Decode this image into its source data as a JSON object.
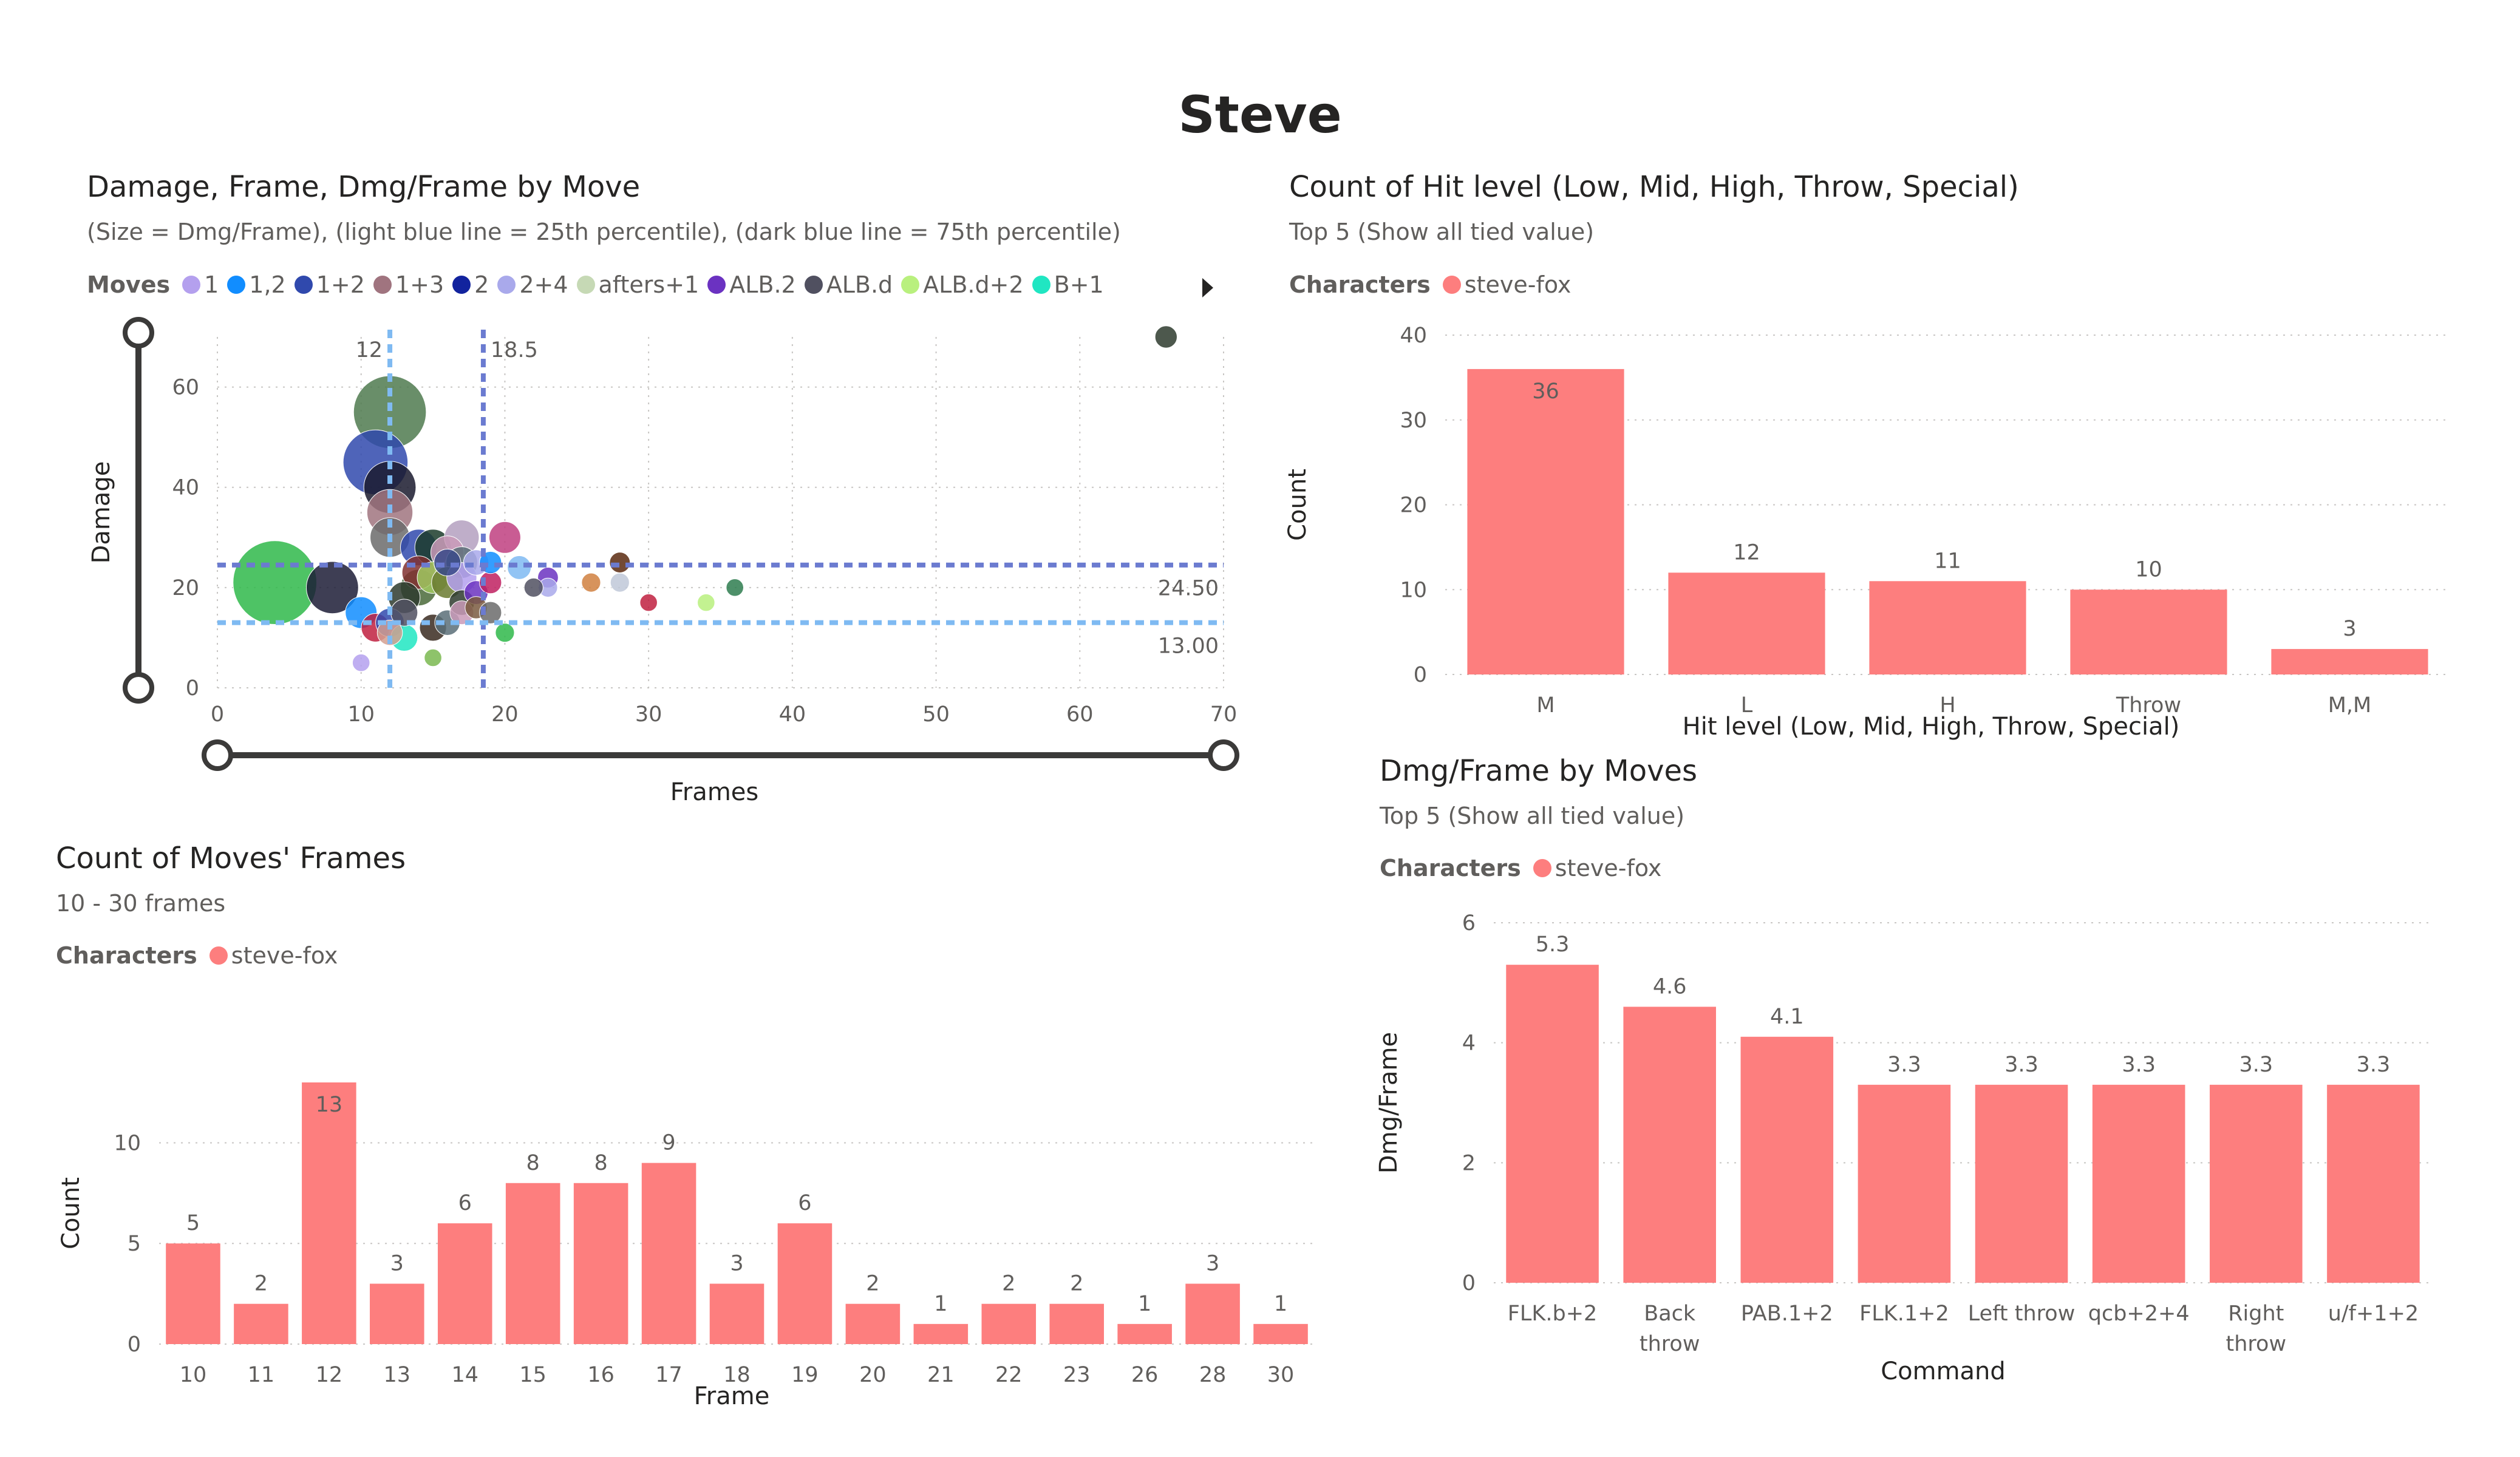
{
  "page_title": "Steve",
  "colors": {
    "bar": "#fd7e7e",
    "grid": "#c8c6c4",
    "p25": "#7fbaf2",
    "p75": "#6b7bd0"
  },
  "scatter": {
    "title": "Damage, Frame, Dmg/Frame by Move",
    "subtitle": "(Size = Dmg/Frame), (light blue line = 25th percentile), (dark blue line = 75th percentile)",
    "legend_label": "Moves",
    "legend_items": [
      {
        "name": "1",
        "color": "#b4a0ee"
      },
      {
        "name": "1,2",
        "color": "#118dff"
      },
      {
        "name": "1+2",
        "color": "#3049ad"
      },
      {
        "name": "1+3",
        "color": "#a0747f"
      },
      {
        "name": "2",
        "color": "#12239e"
      },
      {
        "name": "2+4",
        "color": "#a9a9eb"
      },
      {
        "name": "afters+1",
        "color": "#c6d9b5"
      },
      {
        "name": "ALB.2",
        "color": "#6b32c1"
      },
      {
        "name": "ALB.d",
        "color": "#505060"
      },
      {
        "name": "ALB.d+2",
        "color": "#b9f07e"
      },
      {
        "name": "B+1",
        "color": "#20e6c2"
      }
    ],
    "legend_more_icon": "chevron-right-icon",
    "xlabel": "Frames",
    "ylabel": "Damage"
  },
  "hit_level": {
    "title": "Count of Hit level (Low, Mid, High, Throw, Special)",
    "subtitle": "Top 5 (Show all tied value)",
    "legend_label": "Characters",
    "legend_series": "steve-fox"
  },
  "frames": {
    "title": "Count of Moves' Frames",
    "subtitle": "10 - 30 frames",
    "legend_label": "Characters",
    "legend_series": "steve-fox"
  },
  "dmgframe": {
    "title": "Dmg/Frame by Moves",
    "subtitle": "Top 5 (Show all tied value)",
    "legend_label": "Characters",
    "legend_series": "steve-fox"
  },
  "chart_data": [
    {
      "id": "scatter",
      "type": "scatter",
      "title": "Damage, Frame, Dmg/Frame by Move",
      "xlabel": "Frames",
      "ylabel": "Damage",
      "xlim": [
        0,
        70
      ],
      "ylim": [
        0,
        70
      ],
      "xticks": [
        0,
        10,
        20,
        30,
        40,
        50,
        60,
        70
      ],
      "yticks": [
        0,
        20,
        40,
        60
      ],
      "grid": true,
      "reference_lines": [
        {
          "axis": "x",
          "value": 12,
          "label": "12",
          "color": "#7fbaf2"
        },
        {
          "axis": "x",
          "value": 18.5,
          "label": "18.5",
          "color": "#6b7bd0"
        },
        {
          "axis": "y",
          "value": 24.5,
          "label": "24.50",
          "color": "#6b7bd0"
        },
        {
          "axis": "y",
          "value": 13,
          "label": "13.00",
          "color": "#7fbaf2"
        }
      ],
      "points": [
        {
          "x": 12,
          "y": 55,
          "r": 4.6,
          "c": "#4f7a4f"
        },
        {
          "x": 11,
          "y": 45,
          "r": 4.1,
          "c": "#3049ad"
        },
        {
          "x": 12,
          "y": 40,
          "r": 3.3,
          "c": "#1a1a2e"
        },
        {
          "x": 12,
          "y": 35,
          "r": 2.9,
          "c": "#a0747f"
        },
        {
          "x": 12,
          "y": 30,
          "r": 2.5,
          "c": "#6b6b6b"
        },
        {
          "x": 14,
          "y": 28,
          "r": 2.3,
          "c": "#3049ad"
        },
        {
          "x": 15,
          "y": 28,
          "r": 2.3,
          "c": "#1b3b2a"
        },
        {
          "x": 16,
          "y": 27,
          "r": 2.1,
          "c": "#c99ab8"
        },
        {
          "x": 17,
          "y": 30,
          "r": 2.2,
          "c": "#b4a0c0"
        },
        {
          "x": 17,
          "y": 25,
          "r": 2.0,
          "c": "#5a6e78"
        },
        {
          "x": 20,
          "y": 30,
          "r": 2.0,
          "c": "#c04080"
        },
        {
          "x": 21,
          "y": 24,
          "r": 1.5,
          "c": "#7fbaf2"
        },
        {
          "x": 23,
          "y": 22,
          "r": 1.3,
          "c": "#6b32c1"
        },
        {
          "x": 23,
          "y": 20,
          "r": 1.2,
          "c": "#a9a9eb"
        },
        {
          "x": 22,
          "y": 20,
          "r": 1.2,
          "c": "#505060"
        },
        {
          "x": 26,
          "y": 21,
          "r": 1.2,
          "c": "#d08040"
        },
        {
          "x": 28,
          "y": 25,
          "r": 1.3,
          "c": "#5a2a10"
        },
        {
          "x": 28,
          "y": 21,
          "r": 1.2,
          "c": "#c0c8d8"
        },
        {
          "x": 30,
          "y": 17,
          "r": 1.1,
          "c": "#c02040"
        },
        {
          "x": 34,
          "y": 17,
          "r": 1.1,
          "c": "#b9f07e"
        },
        {
          "x": 36,
          "y": 20,
          "r": 1.1,
          "c": "#2e7d4f"
        },
        {
          "x": 66,
          "y": 70,
          "r": 1.4,
          "c": "#2e3b2e"
        },
        {
          "x": 4,
          "y": 21,
          "r": 5.3,
          "c": "#2fb84a"
        },
        {
          "x": 8,
          "y": 20,
          "r": 3.3,
          "c": "#1c1c36"
        },
        {
          "x": 10,
          "y": 15,
          "r": 2.0,
          "c": "#118dff"
        },
        {
          "x": 11,
          "y": 12,
          "r": 1.8,
          "c": "#c02040"
        },
        {
          "x": 12,
          "y": 13,
          "r": 1.8,
          "c": "#3049ad"
        },
        {
          "x": 12,
          "y": 11,
          "r": 1.6,
          "c": "#d4a090"
        },
        {
          "x": 13,
          "y": 10,
          "r": 1.7,
          "c": "#20e6c2"
        },
        {
          "x": 13,
          "y": 15,
          "r": 1.7,
          "c": "#505060"
        },
        {
          "x": 13,
          "y": 18,
          "r": 2.0,
          "c": "#2e3b2e"
        },
        {
          "x": 14,
          "y": 20,
          "r": 2.3,
          "c": "#4a6a3a"
        },
        {
          "x": 14,
          "y": 23,
          "r": 2.1,
          "c": "#803030"
        },
        {
          "x": 15,
          "y": 22,
          "r": 2.0,
          "c": "#a0c860"
        },
        {
          "x": 15,
          "y": 12,
          "r": 1.7,
          "c": "#3a2a20"
        },
        {
          "x": 16,
          "y": 13,
          "r": 1.6,
          "c": "#5a6e78"
        },
        {
          "x": 16,
          "y": 21,
          "r": 2.0,
          "c": "#6a7a30"
        },
        {
          "x": 17,
          "y": 22,
          "r": 1.9,
          "c": "#b4a0ee"
        },
        {
          "x": 17,
          "y": 17,
          "r": 1.6,
          "c": "#2e3b2e"
        },
        {
          "x": 17,
          "y": 15,
          "r": 1.5,
          "c": "#c99ab8"
        },
        {
          "x": 18,
          "y": 19,
          "r": 1.5,
          "c": "#6b32c1"
        },
        {
          "x": 18,
          "y": 16,
          "r": 1.4,
          "c": "#7a5a40"
        },
        {
          "x": 19,
          "y": 21,
          "r": 1.4,
          "c": "#c02060"
        },
        {
          "x": 19,
          "y": 15,
          "r": 1.4,
          "c": "#6b6b6b"
        },
        {
          "x": 20,
          "y": 11,
          "r": 1.2,
          "c": "#2fb84a"
        },
        {
          "x": 15,
          "y": 6,
          "r": 1.1,
          "c": "#7ab850"
        },
        {
          "x": 10,
          "y": 5,
          "r": 1.1,
          "c": "#b4a0ee"
        },
        {
          "x": 18,
          "y": 25,
          "r": 1.6,
          "c": "#a9a9eb"
        },
        {
          "x": 16,
          "y": 25,
          "r": 1.7,
          "c": "#3a4a8a"
        },
        {
          "x": 19,
          "y": 25,
          "r": 1.4,
          "c": "#118dff"
        }
      ]
    },
    {
      "id": "hit_level",
      "type": "bar",
      "title": "Count of Hit level (Low, Mid, High, Throw, Special)",
      "categories": [
        "M",
        "L",
        "H",
        "Throw",
        "M,M"
      ],
      "values": [
        36,
        12,
        11,
        10,
        3
      ],
      "xlabel": "Hit level (Low, Mid, High, Throw, Special)",
      "ylabel": "Count",
      "ylim": [
        0,
        40
      ],
      "yticks": [
        0,
        10,
        20,
        30,
        40
      ],
      "series": [
        {
          "name": "steve-fox",
          "values": [
            36,
            12,
            11,
            10,
            3
          ]
        }
      ]
    },
    {
      "id": "frames",
      "type": "bar",
      "title": "Count of Moves' Frames",
      "categories": [
        "10",
        "11",
        "12",
        "13",
        "14",
        "15",
        "16",
        "17",
        "18",
        "19",
        "20",
        "21",
        "22",
        "23",
        "26",
        "28",
        "30"
      ],
      "values": [
        5,
        2,
        13,
        3,
        6,
        8,
        8,
        9,
        3,
        6,
        2,
        1,
        2,
        2,
        1,
        3,
        1
      ],
      "xlabel": "Frame",
      "ylabel": "Count",
      "ylim": [
        0,
        13
      ],
      "yticks": [
        0,
        5,
        10
      ],
      "series": [
        {
          "name": "steve-fox",
          "values": [
            5,
            2,
            13,
            3,
            6,
            8,
            8,
            9,
            3,
            6,
            2,
            1,
            2,
            2,
            1,
            3,
            1
          ]
        }
      ]
    },
    {
      "id": "dmgframe",
      "type": "bar",
      "title": "Dmg/Frame by Moves",
      "categories": [
        "FLK.b+2",
        "Back throw",
        "PAB.1+2",
        "FLK.1+2",
        "Left throw",
        "qcb+2+4",
        "Right throw",
        "u/f+1+2"
      ],
      "values": [
        5.3,
        4.6,
        4.1,
        3.3,
        3.3,
        3.3,
        3.3,
        3.3
      ],
      "xlabel": "Command",
      "ylabel": "Dmg/Frame",
      "ylim": [
        0,
        6
      ],
      "yticks": [
        0,
        2,
        4,
        6
      ],
      "series": [
        {
          "name": "steve-fox",
          "values": [
            5.3,
            4.6,
            4.1,
            3.3,
            3.3,
            3.3,
            3.3,
            3.3
          ]
        }
      ]
    }
  ]
}
